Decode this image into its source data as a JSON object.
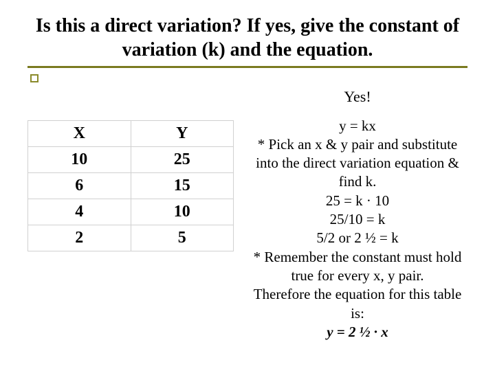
{
  "title": "Is this a direct variation?  If yes, give the constant of variation (k) and the equation.",
  "answer": "Yes!",
  "table": {
    "headers": [
      "X",
      "Y"
    ],
    "rows": [
      [
        "10",
        "25"
      ],
      [
        "6",
        "15"
      ],
      [
        "4",
        "10"
      ],
      [
        "2",
        "5"
      ]
    ]
  },
  "explain": {
    "l1": "y = kx",
    "l2": "* Pick an x & y pair and substitute into the direct variation equation & find k.",
    "l3": "25 = k · 10",
    "l4": "25/10 = k",
    "l5": "5/2 or 2 ½ = k",
    "l6": "* Remember the constant must hold true for every x, y pair.",
    "l7": "Therefore the equation for this table is:",
    "l8": "y = 2 ½ · x"
  },
  "colors": {
    "underline": "#7a7a1f",
    "bullet_border": "#8a8a2a",
    "table_border": "#d0d0d0",
    "text": "#000000",
    "background": "#ffffff"
  }
}
